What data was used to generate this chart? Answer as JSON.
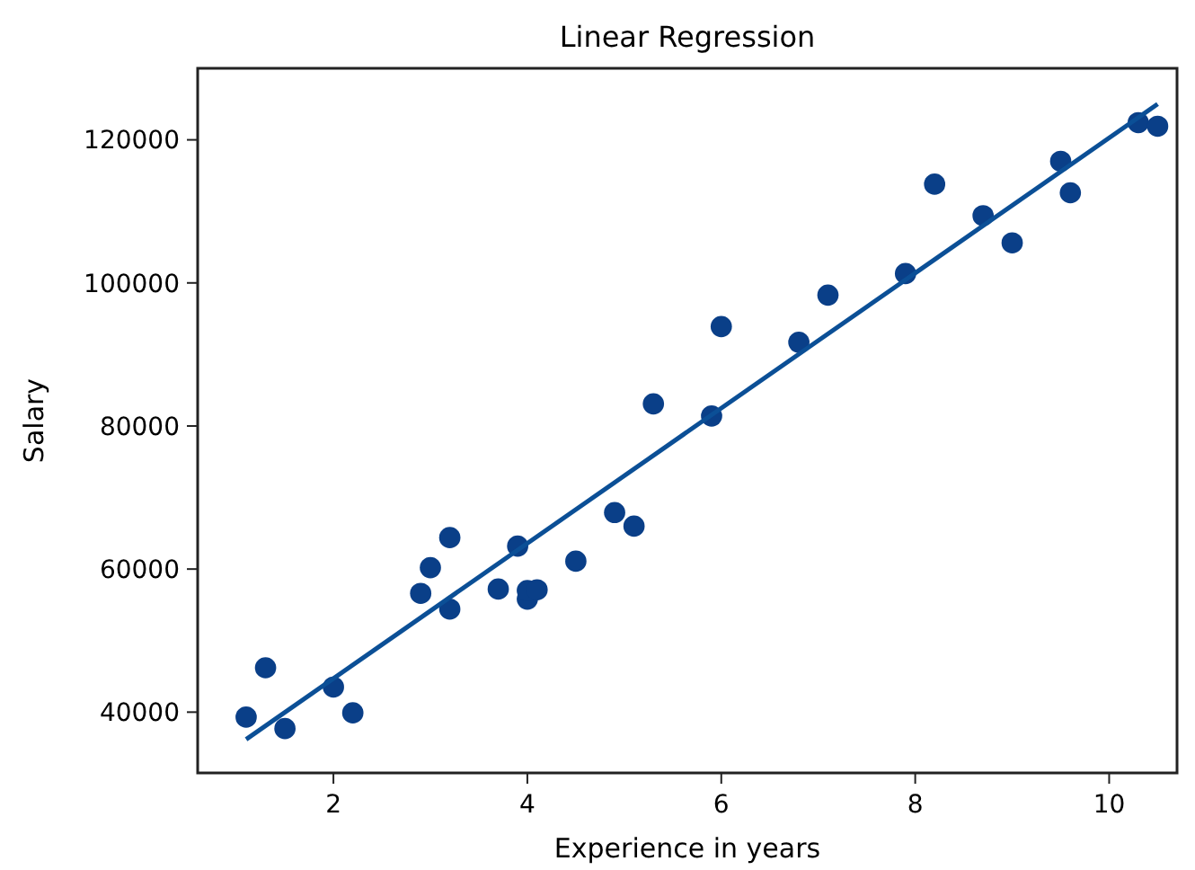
{
  "chart_data": {
    "type": "scatter",
    "title": "Linear Regression",
    "xlabel": "Experience in years",
    "ylabel": "Salary",
    "xlim": [
      0.6,
      10.7
    ],
    "ylim": [
      31500,
      130000
    ],
    "xticks": [
      2,
      4,
      6,
      8,
      10
    ],
    "yticks": [
      40000,
      60000,
      80000,
      100000,
      120000
    ],
    "grid": false,
    "marker": "circle",
    "series": [
      {
        "color": "#0a3f88",
        "x": [
          1.1,
          1.3,
          1.5,
          2.0,
          2.2,
          2.9,
          3.0,
          3.2,
          3.2,
          3.7,
          3.9,
          4.0,
          4.0,
          4.1,
          4.5,
          4.9,
          5.1,
          5.3,
          5.9,
          6.0,
          6.8,
          7.1,
          7.9,
          8.2,
          8.7,
          9.0,
          9.5,
          9.6,
          10.3,
          10.5
        ],
        "values": [
          39300,
          46200,
          37700,
          43500,
          39900,
          56600,
          60200,
          54400,
          64400,
          57200,
          63200,
          55800,
          57000,
          57100,
          61100,
          67900,
          66000,
          83100,
          81400,
          93900,
          91700,
          98300,
          101300,
          113800,
          109400,
          105600,
          117000,
          112600,
          122400,
          121900
        ]
      },
      {
        "type": "line",
        "color": "#0b4f96",
        "line_style": "solid",
        "marker": "none",
        "x": [
          1.1,
          10.5
        ],
        "values": [
          36200,
          125000
        ]
      }
    ]
  }
}
